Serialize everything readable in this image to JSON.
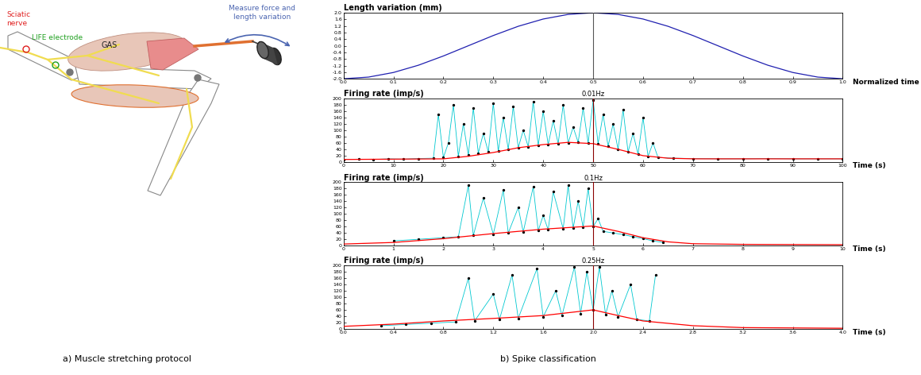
{
  "diagram": {
    "caption": "a) Muscle stretching protocol",
    "labels": {
      "nerve": "Sciatic\nnerve",
      "electrode": "LIFE electrode",
      "muscle": "GAS",
      "measure": "Measure force and\nlength variation"
    }
  },
  "caption": "b) Spike classification",
  "chart_data": [
    {
      "type": "line",
      "title": "Length variation (mm)",
      "x_label": "Normalized time",
      "color": "#2020b0",
      "x": [
        0,
        0.05,
        0.1,
        0.15,
        0.2,
        0.25,
        0.3,
        0.35,
        0.4,
        0.45,
        0.5,
        0.55,
        0.6,
        0.65,
        0.7,
        0.75,
        0.8,
        0.85,
        0.9,
        0.95,
        1.0
      ],
      "values": [
        -2.0,
        -1.9,
        -1.62,
        -1.18,
        -0.62,
        0.0,
        0.62,
        1.18,
        1.62,
        1.9,
        2.0,
        1.9,
        1.62,
        1.18,
        0.62,
        0.0,
        -0.62,
        -1.18,
        -1.62,
        -1.9,
        -2.0
      ],
      "xlim": [
        0,
        1
      ],
      "xticks": [
        {
          "value": 0,
          "label": "0.0"
        },
        0.1,
        0.2,
        0.3,
        0.4,
        0.5,
        0.6,
        0.7,
        0.8,
        0.9,
        {
          "value": 1,
          "label": "1.0"
        }
      ],
      "ylim": [
        -2,
        2
      ],
      "yticks": [
        {
          "value": -2,
          "label": "-2.0"
        },
        -1.6,
        -1.2,
        -0.8,
        -0.4,
        {
          "value": 0,
          "label": "0.0"
        },
        0.4,
        0.8,
        1.2,
        1.6,
        {
          "value": 2,
          "label": "2.0"
        }
      ],
      "vline": 0.5
    },
    {
      "type": "line",
      "title": "Firing rate (imp/s)",
      "subtitle": "0.01Hz",
      "x_label": "Time (s)",
      "series": [
        {
          "color": "#00c8d0",
          "marker": "dot",
          "x": [
            0,
            3,
            6,
            9,
            12,
            15,
            18,
            19,
            20,
            21,
            22,
            23,
            24,
            25,
            26,
            27,
            28,
            29,
            30,
            31,
            32,
            33,
            34,
            35,
            36,
            37,
            38,
            39,
            40,
            41,
            42,
            43,
            44,
            45,
            46,
            47,
            48,
            49,
            50,
            51,
            52,
            53,
            54,
            55,
            56,
            57,
            58,
            59,
            60,
            61,
            62,
            63,
            66,
            70,
            75,
            80,
            85,
            90,
            95,
            100
          ],
          "values": [
            8,
            9,
            8,
            10,
            9,
            11,
            12,
            150,
            14,
            60,
            180,
            18,
            120,
            22,
            170,
            28,
            90,
            32,
            185,
            35,
            140,
            40,
            175,
            45,
            100,
            48,
            190,
            52,
            160,
            55,
            130,
            58,
            180,
            60,
            110,
            62,
            170,
            60,
            195,
            58,
            150,
            50,
            120,
            40,
            165,
            32,
            90,
            25,
            140,
            18,
            60,
            14,
            12,
            11,
            10,
            10,
            11,
            10,
            10,
            10
          ]
        },
        {
          "color": "#ff0000",
          "x": [
            0,
            10,
            20,
            25,
            30,
            35,
            40,
            45,
            50,
            55,
            60,
            65,
            70,
            80,
            90,
            100
          ],
          "values": [
            8,
            9,
            10,
            18,
            30,
            45,
            55,
            62,
            58,
            40,
            20,
            12,
            10,
            10,
            10,
            10
          ]
        }
      ],
      "xlim": [
        0,
        100
      ],
      "xticks": [
        0,
        10,
        20,
        30,
        40,
        50,
        60,
        70,
        80,
        90,
        100
      ],
      "ylim": [
        0,
        200
      ],
      "yticks": [
        0,
        20,
        40,
        60,
        80,
        100,
        120,
        140,
        160,
        180,
        200
      ],
      "vline": 50
    },
    {
      "type": "line",
      "title": "Firing rate (imp/s)",
      "subtitle": "0.1Hz",
      "x_label": "Time (s)",
      "series": [
        {
          "color": "#00c8d0",
          "marker": "dot",
          "x": [
            1.0,
            1.5,
            2.0,
            2.3,
            2.5,
            2.6,
            2.8,
            3.0,
            3.2,
            3.3,
            3.5,
            3.6,
            3.8,
            3.9,
            4.0,
            4.1,
            4.2,
            4.4,
            4.5,
            4.6,
            4.7,
            4.8,
            4.9,
            5.0,
            5.1,
            5.2,
            5.4,
            5.6,
            5.8,
            6.0,
            6.2,
            6.4
          ],
          "values": [
            15,
            20,
            25,
            28,
            190,
            32,
            150,
            36,
            175,
            40,
            120,
            43,
            185,
            47,
            95,
            50,
            170,
            53,
            190,
            55,
            140,
            58,
            180,
            60,
            85,
            45,
            40,
            35,
            28,
            22,
            15,
            10
          ]
        },
        {
          "color": "#ff0000",
          "x": [
            0,
            1,
            2,
            3,
            4,
            5,
            5.5,
            6,
            6.5,
            7,
            8,
            10
          ],
          "values": [
            5,
            10,
            22,
            38,
            52,
            62,
            45,
            25,
            12,
            6,
            4,
            3
          ]
        }
      ],
      "xlim": [
        0,
        10
      ],
      "xticks": [
        0,
        1,
        2,
        3,
        4,
        5,
        6,
        7,
        8,
        9,
        10
      ],
      "ylim": [
        0,
        200
      ],
      "yticks": [
        0,
        20,
        40,
        60,
        80,
        100,
        120,
        140,
        160,
        180,
        200
      ],
      "vline": 5
    },
    {
      "type": "line",
      "title": "Firing rate (imp/s)",
      "subtitle": "0.25Hz",
      "x_label": "Time (s)",
      "series": [
        {
          "color": "#00c8d0",
          "marker": "dot",
          "x": [
            0.3,
            0.5,
            0.7,
            0.9,
            1.0,
            1.05,
            1.2,
            1.25,
            1.35,
            1.4,
            1.55,
            1.6,
            1.7,
            1.75,
            1.85,
            1.9,
            1.95,
            2.0,
            2.05,
            2.1,
            2.15,
            2.2,
            2.3,
            2.35,
            2.45,
            2.5
          ],
          "values": [
            10,
            14,
            18,
            22,
            160,
            25,
            110,
            30,
            170,
            33,
            190,
            38,
            120,
            42,
            195,
            48,
            180,
            60,
            195,
            45,
            120,
            38,
            140,
            30,
            25,
            170
          ]
        },
        {
          "color": "#ff0000",
          "x": [
            0,
            0.4,
            0.8,
            1.2,
            1.6,
            2.0,
            2.2,
            2.4,
            2.8,
            3.2,
            4.0
          ],
          "values": [
            8,
            15,
            25,
            33,
            42,
            60,
            42,
            25,
            10,
            4,
            2
          ]
        }
      ],
      "xlim": [
        0,
        4
      ],
      "xticks": [
        {
          "value": 0,
          "label": "0.0"
        },
        0.4,
        0.8,
        1.2,
        1.6,
        {
          "value": 2,
          "label": "2.0"
        },
        2.4,
        2.8,
        3.2,
        3.6,
        {
          "value": 4,
          "label": "4.0"
        }
      ],
      "ylim": [
        0,
        200
      ],
      "yticks": [
        0,
        20,
        40,
        60,
        80,
        100,
        120,
        140,
        160,
        180,
        200
      ],
      "vline": 2
    }
  ]
}
